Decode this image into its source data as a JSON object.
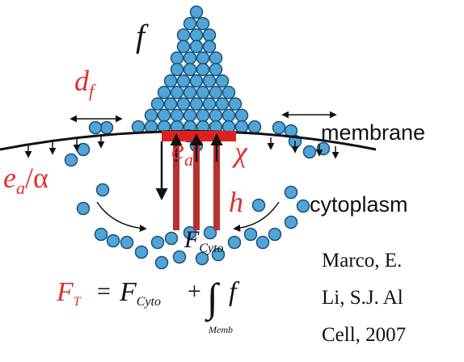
{
  "labels": {
    "f": "f",
    "d_f": {
      "base": "d",
      "sub": "f"
    },
    "membrane": "membrane",
    "e_a": {
      "base": "e",
      "sub": "a"
    },
    "chi": "χ",
    "e_a_alpha": {
      "base": "e",
      "sub": "a",
      "rest": "/α"
    },
    "h": "h",
    "cytoplasm": "cytoplasm",
    "F_cyto": {
      "base": "F",
      "sub": "Cyto"
    }
  },
  "formula": {
    "lhs": "F",
    "lhs_sub": "T",
    "eq": "=",
    "term": "F",
    "term_sub": "Cyto",
    "plus": "+",
    "integral": "∫",
    "integral_sub": "Memb",
    "integrand": "f"
  },
  "citation": [
    "Marco, E.",
    "Li, S.J. Al",
    "Cell, 2007"
  ]
}
